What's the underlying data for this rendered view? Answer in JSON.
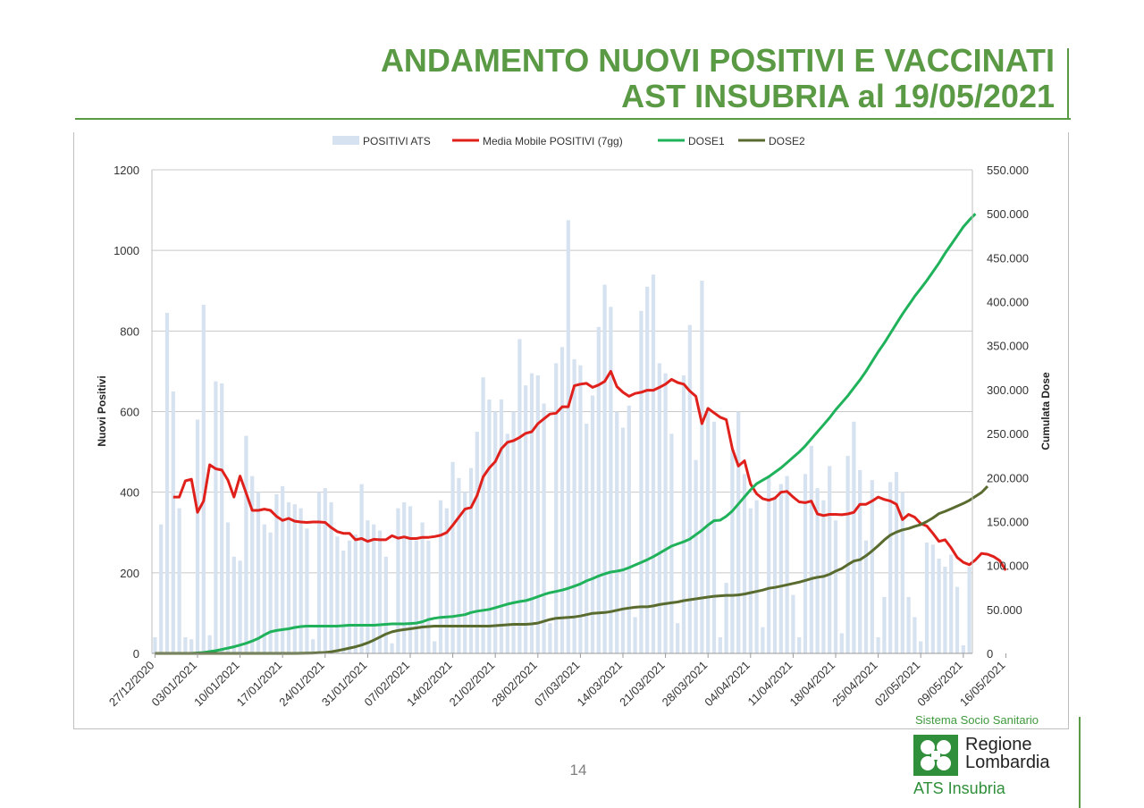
{
  "slide": {
    "title_line1": "ANDAMENTO NUOVI POSITIVI E VACCINATI",
    "title_line2": "AST INSUBRIA al 19/05/2021",
    "page_number": "14",
    "title_color": "#5b9a45"
  },
  "logo": {
    "top_text": "Sistema Socio Sanitario",
    "name_line1": "Regione",
    "name_line2": "Lombardia",
    "bottom_text": "ATS Insubria",
    "icon": "cross-logo-icon",
    "color": "#2f8f3a"
  },
  "chart_data": {
    "type": "bar",
    "ylabel": "Nuovi Positivi",
    "y2label": "Cumulata Dose",
    "ylim": [
      0,
      1200
    ],
    "y2lim": [
      0,
      550000
    ],
    "y_ticks": [
      "0",
      "200",
      "400",
      "600",
      "800",
      "1000",
      "1200"
    ],
    "y2_ticks": [
      "0",
      "50.000",
      "100.000",
      "150.000",
      "200.000",
      "250.000",
      "300.000",
      "350.000",
      "400.000",
      "450.000",
      "500.000",
      "550.000"
    ],
    "x_ticks": [
      "27/12/2020",
      "03/01/2021",
      "10/01/2021",
      "17/01/2021",
      "24/01/2021",
      "31/01/2021",
      "07/02/2021",
      "14/02/2021",
      "21/02/2021",
      "28/02/2021",
      "07/03/2021",
      "14/03/2021",
      "21/03/2021",
      "28/03/2021",
      "04/04/2021",
      "11/04/2021",
      "18/04/2021",
      "25/04/2021",
      "02/05/2021",
      "09/05/2021",
      "16/05/2021"
    ],
    "grid": true,
    "legend_position": "top",
    "start_date": "27/12/2020",
    "series": [
      {
        "name": "POSITIVI ATS",
        "type": "bar",
        "axis": "left",
        "color": "#d6e2f0",
        "values": [
          40,
          320,
          845,
          650,
          360,
          40,
          35,
          580,
          865,
          45,
          675,
          670,
          325,
          240,
          230,
          540,
          440,
          400,
          320,
          300,
          395,
          415,
          375,
          370,
          360,
          310,
          35,
          400,
          410,
          375,
          290,
          255,
          280,
          295,
          420,
          330,
          320,
          305,
          240,
          25,
          360,
          375,
          365,
          280,
          325,
          280,
          30,
          380,
          360,
          475,
          435,
          400,
          460,
          550,
          685,
          630,
          600,
          630,
          545,
          600,
          780,
          665,
          695,
          690,
          620,
          75,
          720,
          760,
          1075,
          730,
          715,
          570,
          640,
          810,
          915,
          860,
          600,
          560,
          615,
          90,
          850,
          910,
          940,
          720,
          695,
          545,
          75,
          690,
          815,
          480,
          925,
          610,
          575,
          40,
          175,
          505,
          600,
          445,
          360,
          380,
          65,
          440,
          390,
          420,
          440,
          145,
          40,
          445,
          515,
          410,
          380,
          465,
          330,
          50,
          490,
          575,
          455,
          280,
          430,
          40,
          140,
          425,
          450,
          400,
          140,
          90,
          30,
          275,
          270,
          235,
          215,
          245,
          165,
          20,
          215
        ]
      },
      {
        "name": "Media Mobile POSITIVI (7gg)",
        "type": "line",
        "axis": "left",
        "color": "#e0201b",
        "values": [
          null,
          null,
          null,
          388,
          388,
          428,
          432,
          350,
          378,
          468,
          458,
          455,
          430,
          388,
          440,
          398,
          355,
          355,
          358,
          355,
          340,
          330,
          335,
          328,
          326,
          325,
          326,
          326,
          325,
          312,
          302,
          298,
          298,
          282,
          285,
          278,
          283,
          282,
          282,
          292,
          286,
          289,
          285,
          285,
          288,
          288,
          290,
          293,
          300,
          318,
          338,
          358,
          362,
          392,
          438,
          460,
          476,
          508,
          524,
          528,
          536,
          546,
          550,
          570,
          582,
          594,
          596,
          612,
          612,
          664,
          668,
          670,
          660,
          666,
          675,
          700,
          662,
          648,
          638,
          645,
          648,
          653,
          653,
          660,
          668,
          680,
          672,
          668,
          651,
          638,
          570,
          608,
          597,
          586,
          580,
          508,
          465,
          478,
          420,
          396,
          384,
          380,
          385,
          400,
          402,
          388,
          376,
          374,
          378,
          346,
          342,
          345,
          345,
          344,
          346,
          350,
          370,
          370,
          378,
          388,
          382,
          378,
          370,
          332,
          345,
          338,
          322,
          316,
          298,
          278,
          282,
          262,
          238,
          226,
          220,
          232,
          248,
          246,
          240,
          230,
          206
        ]
      },
      {
        "name": "DOSE1",
        "type": "line",
        "axis": "right",
        "color": "#1fb25a",
        "values": [
          0,
          0,
          0,
          0,
          0,
          0,
          0,
          500,
          1000,
          2000,
          3000,
          4500,
          6000,
          7500,
          9500,
          11500,
          14000,
          17000,
          21000,
          24500,
          26000,
          27000,
          28000,
          29500,
          30500,
          31000,
          31000,
          31000,
          31000,
          31000,
          31000,
          31500,
          32000,
          32000,
          32000,
          32000,
          32000,
          32500,
          33000,
          33500,
          33500,
          33500,
          34000,
          34500,
          36000,
          38500,
          40000,
          41000,
          41500,
          42000,
          43000,
          44000,
          46500,
          48000,
          49000,
          50000,
          52000,
          54000,
          56000,
          57500,
          59000,
          60000,
          62000,
          64500,
          67000,
          69000,
          70500,
          72000,
          74000,
          76500,
          79000,
          82500,
          85000,
          88000,
          90500,
          92500,
          93500,
          95000,
          97500,
          100500,
          103500,
          106500,
          110000,
          114000,
          118000,
          122000,
          124500,
          127000,
          130000,
          135000,
          140000,
          146000,
          151000,
          151500,
          156000,
          162000,
          170000,
          178000,
          186000,
          193000,
          197000,
          201000,
          206000,
          211000,
          217000,
          223000,
          229000,
          236000,
          244000,
          252000,
          260000,
          268000,
          277000,
          285000,
          293000,
          302000,
          311000,
          321000,
          332000,
          343000,
          353000,
          364000,
          375000,
          386000,
          396000,
          406000,
          415000,
          424000,
          434000,
          444000,
          455000,
          465000,
          475000,
          485000,
          493000,
          500000
        ]
      },
      {
        "name": "DOSE2",
        "type": "line",
        "axis": "right",
        "color": "#5a6b2f",
        "values": [
          0,
          0,
          0,
          0,
          0,
          0,
          0,
          0,
          0,
          0,
          0,
          0,
          0,
          0,
          0,
          0,
          0,
          0,
          0,
          0,
          0,
          0,
          0,
          0,
          100,
          200,
          400,
          700,
          1000,
          1800,
          3000,
          4500,
          6000,
          7500,
          9500,
          12000,
          15000,
          18500,
          22000,
          24500,
          26000,
          27000,
          28000,
          29000,
          30000,
          30500,
          31000,
          31000,
          31000,
          31000,
          31000,
          31000,
          31000,
          31000,
          31000,
          31000,
          31500,
          32000,
          32500,
          33000,
          33000,
          33000,
          33500,
          34500,
          36500,
          38500,
          40000,
          40500,
          41000,
          41500,
          42500,
          44000,
          45500,
          46000,
          46500,
          47500,
          49000,
          50500,
          51500,
          52500,
          53000,
          53000,
          54000,
          55500,
          56500,
          57500,
          58500,
          60000,
          61000,
          62000,
          63000,
          64000,
          65000,
          65500,
          66000,
          66000,
          66500,
          67500,
          69000,
          70500,
          72000,
          74000,
          75000,
          76500,
          78000,
          79500,
          81000,
          83000,
          85000,
          86500,
          87500,
          90000,
          93500,
          96500,
          101000,
          105000,
          106500,
          111000,
          116500,
          122500,
          129000,
          134500,
          138000,
          140500,
          142000,
          144500,
          146500,
          150000,
          154000,
          159000,
          161500,
          164500,
          167500,
          170500,
          174000,
          178500,
          183000,
          190000
        ]
      }
    ]
  }
}
